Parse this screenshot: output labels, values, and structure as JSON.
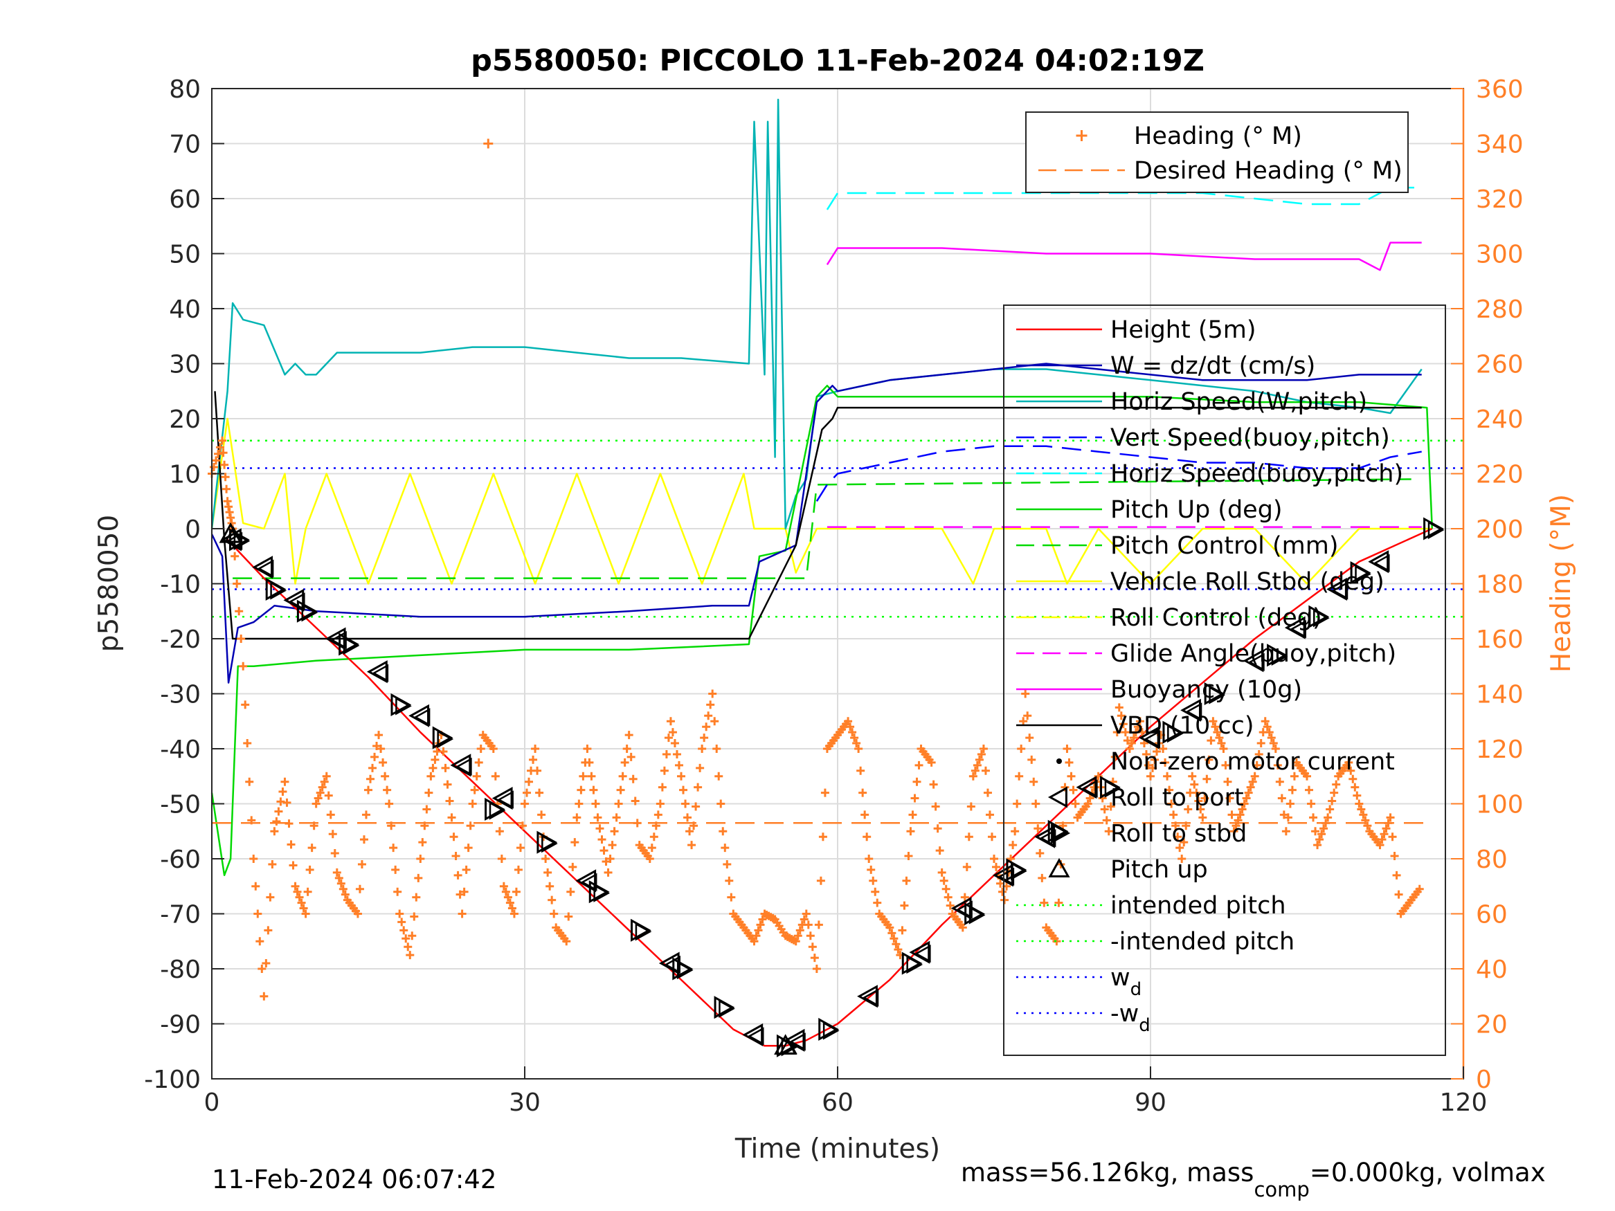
{
  "chart_data": {
    "type": "line",
    "title": "p5580050: PICCOLO 11-Feb-2024 04:02:19Z",
    "xlabel": "Time (minutes)",
    "ylabel": "p5580050",
    "ylabel_right": "Heading (°M)",
    "xlim": [
      0,
      120
    ],
    "ylim": [
      -100,
      80
    ],
    "ylim_right": [
      0,
      360
    ],
    "x_ticks": [
      "0",
      "30",
      "60",
      "90",
      "120"
    ],
    "y_ticks": [
      "80",
      "70",
      "60",
      "50",
      "40",
      "30",
      "20",
      "10",
      "0",
      "-10",
      "-20",
      "-30",
      "-40",
      "-50",
      "-60",
      "-70",
      "-80",
      "-90",
      "-100"
    ],
    "y_ticks_right": [
      "360",
      "340",
      "320",
      "300",
      "280",
      "260",
      "240",
      "220",
      "200",
      "180",
      "160",
      "140",
      "120",
      "100",
      "80",
      "60",
      "40",
      "20",
      "0"
    ],
    "grid": true,
    "footer_left": "11-Feb-2024 06:07:42",
    "footer_right": {
      "part1": "mass=56.126kg, mass",
      "sub": "comp",
      "part2": "=0.000kg, volmax"
    },
    "legend_right_axis": [
      {
        "label": "Heading (° M)",
        "color": "#ff7f27",
        "style": "plus"
      },
      {
        "label": "Desired Heading (° M)",
        "color": "#ff7f27",
        "style": "dashed"
      }
    ],
    "legend_left_axis": [
      {
        "label": "Height (5m)",
        "color": "#ff0000",
        "style": "solid"
      },
      {
        "label": "W = dz/dt (cm/s)",
        "color": "#0000b3",
        "style": "solid"
      },
      {
        "label": "Horiz Speed(W,pitch)",
        "color": "#00b3b3",
        "style": "solid"
      },
      {
        "label": "Vert Speed(buoy,pitch)",
        "color": "#0000ff",
        "style": "dashed"
      },
      {
        "label": "Horiz Speed(buoy,pitch)",
        "color": "#00ffff",
        "style": "dashed"
      },
      {
        "label": "Pitch Up (deg)",
        "color": "#00d900",
        "style": "solid"
      },
      {
        "label": "Pitch Control (mm)",
        "color": "#00d900",
        "style": "dashed"
      },
      {
        "label": "Vehicle Roll Stbd (deg)",
        "color": "#ffff00",
        "style": "solid"
      },
      {
        "label": "Roll Control (deg)",
        "color": "#ffff00",
        "style": "dashed"
      },
      {
        "label": "Glide Angle(buoy,pitch)",
        "color": "#ff00ff",
        "style": "dashed"
      },
      {
        "label": "Buoyancy (10g)",
        "color": "#ff00ff",
        "style": "solid"
      },
      {
        "label": "VBD (10 cc)",
        "color": "#000000",
        "style": "solid"
      },
      {
        "label": "Non-zero motor current",
        "color": "#000000",
        "style": "dot"
      },
      {
        "label": "Roll to port",
        "color": "#000000",
        "style": "tri-left"
      },
      {
        "label": "Roll to stbd",
        "color": "#000000",
        "style": "tri-right"
      },
      {
        "label": "Pitch up",
        "color": "#000000",
        "style": "tri-up"
      },
      {
        "label": "intended pitch",
        "color": "#00ff00",
        "style": "dotted"
      },
      {
        "label": "-intended pitch",
        "color": "#00ff00",
        "style": "dotted"
      },
      {
        "label": "w",
        "label_sub": "d",
        "color": "#0000ff",
        "style": "dotted"
      },
      {
        "label": "-w",
        "label_sub": "d",
        "color": "#0000ff",
        "style": "dotted"
      }
    ],
    "reference_lines": {
      "intended_pitch": 16,
      "neg_intended_pitch": -16,
      "w_d": 11,
      "neg_w_d": -11,
      "desired_heading": 93
    },
    "series": [
      {
        "name": "Height (5m)",
        "axis": "left",
        "x": [
          1.5,
          5,
          10,
          15,
          20,
          25,
          30,
          35,
          40,
          45,
          50,
          53,
          55,
          57,
          60,
          65,
          70,
          75,
          80,
          85,
          90,
          95,
          100,
          105,
          110,
          117
        ],
        "y": [
          -2,
          -9,
          -18,
          -27,
          -37,
          -46,
          -55,
          -64,
          -73,
          -82,
          -91,
          -94,
          -94,
          -93,
          -90,
          -82,
          -72,
          -63,
          -54,
          -45,
          -36,
          -28,
          -20,
          -13,
          -6,
          0
        ]
      },
      {
        "name": "W = dz/dt (cm/s)",
        "axis": "left",
        "x": [
          0,
          1,
          1.6,
          2.5,
          4,
          6,
          10,
          20,
          30,
          40,
          48,
          51.5,
          52.5,
          56,
          58,
          59.5,
          60,
          65,
          70,
          75,
          80,
          85,
          90,
          95,
          100,
          105,
          110,
          116
        ],
        "y": [
          -1,
          -5,
          -28,
          -18,
          -17,
          -14,
          -15,
          -16,
          -16,
          -15,
          -14,
          -14,
          -6,
          -3,
          23,
          26,
          25,
          27,
          28,
          29,
          30,
          29,
          28,
          27,
          27,
          27,
          28,
          28
        ]
      },
      {
        "name": "Horiz Speed(W,pitch)",
        "axis": "left",
        "x": [
          0,
          1.5,
          2,
          3,
          5,
          7,
          8,
          9,
          10,
          12,
          15,
          20,
          25,
          30,
          35,
          40,
          45,
          51.5,
          52,
          53,
          53.3,
          54,
          54.3,
          55,
          56,
          57,
          58,
          60,
          65,
          70,
          75,
          80,
          85,
          90,
          95,
          100,
          105,
          110,
          113,
          116
        ],
        "y": [
          0,
          25,
          41,
          38,
          37,
          28,
          30,
          28,
          28,
          32,
          32,
          32,
          33,
          33,
          32,
          31,
          31,
          30,
          74,
          28,
          74,
          13,
          78,
          0,
          6,
          9,
          24,
          25,
          27,
          28,
          29,
          29,
          28,
          27,
          26,
          25,
          23,
          22,
          21,
          29
        ]
      },
      {
        "name": "Vert Speed(buoy,pitch)",
        "axis": "left",
        "x": [
          58,
          59,
          60,
          65,
          70,
          75,
          80,
          85,
          90,
          95,
          100,
          105,
          110,
          113,
          116
        ],
        "y": [
          5,
          8,
          10,
          12,
          14,
          15,
          15,
          14,
          13,
          12,
          12,
          11,
          11,
          13,
          14
        ]
      },
      {
        "name": "Horiz Speed(buoy,pitch)",
        "axis": "left",
        "x": [
          59,
          60,
          65,
          70,
          75,
          80,
          85,
          90,
          95,
          100,
          105,
          110,
          113,
          116
        ],
        "y": [
          58,
          61,
          61,
          61,
          61,
          61,
          61,
          61,
          61,
          60,
          59,
          59,
          62,
          62
        ]
      },
      {
        "name": "Pitch Up (deg)",
        "axis": "left",
        "x": [
          0,
          1.2,
          1.8,
          2.5,
          4,
          10,
          20,
          30,
          40,
          51.5,
          52.5,
          55,
          58,
          59,
          60,
          70,
          80,
          90,
          100,
          110,
          116.5,
          117
        ],
        "y": [
          -48,
          -63,
          -60,
          -25,
          -25,
          -24,
          -23,
          -22,
          -22,
          -21,
          -5,
          -4,
          24,
          26,
          24,
          24,
          24,
          24,
          23,
          23,
          22,
          0
        ]
      },
      {
        "name": "Pitch Control (mm)",
        "axis": "left",
        "x": [
          2,
          52,
          52.5,
          57,
          58,
          115
        ],
        "y": [
          -9,
          -9,
          -9,
          -9,
          8,
          9
        ]
      },
      {
        "name": "Vehicle Roll Stbd (deg)",
        "axis": "left",
        "x": [
          0,
          1.5,
          3,
          5,
          7,
          8,
          9,
          11,
          13,
          15,
          17,
          19,
          21,
          23,
          25,
          27,
          29,
          31,
          33,
          35,
          37,
          39,
          41,
          43,
          45,
          47,
          49,
          51,
          52,
          55,
          56,
          58,
          60,
          70,
          73,
          75,
          80,
          82,
          85,
          90,
          95,
          100,
          105,
          110,
          115,
          117
        ],
        "y": [
          0,
          20,
          1,
          0,
          10,
          -10,
          0,
          10,
          0,
          -10,
          0,
          10,
          0,
          -10,
          0,
          10,
          0,
          -10,
          0,
          10,
          0,
          -10,
          0,
          10,
          0,
          -10,
          0,
          10,
          0,
          0,
          -8,
          0,
          0,
          0,
          -10,
          0,
          0,
          -10,
          0,
          -10,
          0,
          0,
          -10,
          0,
          0,
          0
        ]
      },
      {
        "name": "Glide Angle(buoy,pitch)",
        "axis": "left",
        "x": [
          59,
          116
        ],
        "y": [
          0.3,
          0.3
        ]
      },
      {
        "name": "Buoyancy (10g)",
        "axis": "left",
        "x": [
          59,
          60,
          70,
          80,
          90,
          100,
          110,
          111,
          112,
          113,
          116
        ],
        "y": [
          48,
          51,
          51,
          50,
          50,
          49,
          49,
          48,
          47,
          52,
          52
        ]
      },
      {
        "name": "VBD (10 cc)",
        "axis": "left",
        "x": [
          0.3,
          1.2,
          2,
          10,
          20,
          30,
          40,
          51.5,
          56,
          58.5,
          59.5,
          60,
          116
        ],
        "y": [
          25,
          -2,
          -20,
          -20,
          -20,
          -20,
          -20,
          -20,
          -3,
          18,
          20,
          22,
          22
        ]
      },
      {
        "name": "Heading (° M)",
        "axis": "right",
        "x": [
          0,
          1,
          1.5,
          2,
          3,
          4,
          5,
          6,
          7,
          8,
          9,
          10,
          11,
          12,
          13,
          14,
          15,
          16,
          17,
          18,
          19,
          20,
          21,
          22,
          23,
          24,
          25,
          26,
          27,
          28,
          29,
          30,
          31,
          32,
          33,
          34,
          35,
          36,
          37,
          38,
          39,
          40,
          41,
          42,
          43,
          44,
          45,
          46,
          47,
          48,
          49,
          50,
          51,
          52,
          53,
          54,
          55,
          56,
          57,
          58,
          59,
          60,
          61,
          62,
          63,
          64,
          65,
          66,
          67,
          68,
          69,
          70,
          71,
          72,
          73,
          74,
          75,
          76,
          77,
          78,
          79,
          80,
          81,
          82,
          83,
          84,
          85,
          86,
          87,
          88,
          89,
          90,
          91,
          92,
          93,
          94,
          95,
          96,
          97,
          98,
          99,
          100,
          101,
          102,
          103,
          104,
          105,
          106,
          107,
          108,
          109,
          110,
          111,
          112,
          113,
          114,
          115,
          116
        ],
        "y": [
          220,
          232,
          210,
          200,
          150,
          80,
          30,
          90,
          108,
          70,
          60,
          100,
          110,
          75,
          65,
          60,
          105,
          125,
          100,
          60,
          45,
          80,
          110,
          125,
          95,
          60,
          100,
          125,
          120,
          70,
          60,
          100,
          120,
          80,
          55,
          50,
          95,
          120,
          95,
          75,
          100,
          125,
          85,
          80,
          100,
          130,
          110,
          85,
          120,
          140,
          90,
          60,
          55,
          50,
          60,
          58,
          52,
          50,
          60,
          40,
          120,
          125,
          130,
          120,
          80,
          60,
          55,
          45,
          90,
          120,
          115,
          75,
          60,
          55,
          110,
          120,
          80,
          65,
          90,
          140,
          100,
          55,
          50,
          120,
          95,
          100,
          110,
          90,
          135,
          120,
          130,
          110,
          125,
          100,
          80,
          110,
          95,
          130,
          120,
          90,
          100,
          110,
          130,
          120,
          90,
          115,
          110,
          85,
          95,
          110,
          115,
          100,
          90,
          85,
          95,
          60,
          65,
          70
        ]
      },
      {
        "name": "Desired Heading (° M)",
        "axis": "right",
        "x": [
          0,
          117
        ],
        "y": [
          93,
          93
        ]
      }
    ],
    "markers": {
      "roll_to_port": {
        "x": [
          2,
          5,
          8,
          12,
          16,
          20,
          24,
          28,
          36,
          44,
          52,
          56,
          63,
          68,
          72,
          76,
          80,
          84,
          90,
          94,
          100,
          104,
          108,
          112
        ],
        "y": [
          -2,
          -7,
          -13,
          -20,
          -26,
          -34,
          -43,
          -49,
          -64,
          -79,
          -92,
          -93,
          -85,
          -77,
          -69,
          -63,
          -56,
          -47,
          -38,
          -33,
          -24,
          -18,
          -11,
          -6
        ]
      },
      "roll_to_stbd": {
        "x": [
          2.5,
          6,
          9,
          13,
          18,
          22,
          27,
          32,
          37,
          41,
          45,
          49,
          55,
          59,
          67,
          73,
          77,
          81,
          86,
          92,
          96,
          102,
          106,
          110,
          117
        ],
        "y": [
          -2,
          -11,
          -15,
          -21,
          -32,
          -38,
          -51,
          -57,
          -66,
          -73,
          -80,
          -87,
          -94,
          -91,
          -79,
          -70,
          -62,
          -55,
          -47,
          -37,
          -30,
          -23,
          -16,
          -8,
          0
        ]
      },
      "pitch_up": {
        "x": [
          1.8,
          55
        ],
        "y": [
          -1,
          -94
        ]
      }
    },
    "outlier_heading": {
      "x": 26.5,
      "y": 340
    }
  }
}
